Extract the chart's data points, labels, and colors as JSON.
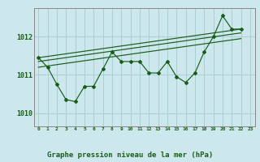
{
  "title": "Graphe pression niveau de la mer (hPa)",
  "bg_color": "#cce8ec",
  "grid_color": "#aacdd4",
  "line_color": "#1a5c1a",
  "xlim": [
    -0.5,
    23.5
  ],
  "ylim": [
    1009.65,
    1012.75
  ],
  "yticks": [
    1010,
    1011,
    1012
  ],
  "xticks": [
    0,
    1,
    2,
    3,
    4,
    5,
    6,
    7,
    8,
    9,
    10,
    11,
    12,
    13,
    14,
    15,
    16,
    17,
    18,
    19,
    20,
    21,
    22,
    23
  ],
  "main_data": [
    [
      0,
      1011.45
    ],
    [
      1,
      1011.2
    ],
    [
      2,
      1010.75
    ],
    [
      3,
      1010.35
    ],
    [
      4,
      1010.3
    ],
    [
      5,
      1010.7
    ],
    [
      6,
      1010.7
    ],
    [
      7,
      1011.15
    ],
    [
      8,
      1011.6
    ],
    [
      9,
      1011.35
    ],
    [
      10,
      1011.35
    ],
    [
      11,
      1011.35
    ],
    [
      12,
      1011.05
    ],
    [
      13,
      1011.05
    ],
    [
      14,
      1011.35
    ],
    [
      15,
      1010.95
    ],
    [
      16,
      1010.8
    ],
    [
      17,
      1011.05
    ],
    [
      18,
      1011.6
    ],
    [
      19,
      1012.0
    ],
    [
      20,
      1012.55
    ],
    [
      21,
      1012.2
    ],
    [
      22,
      1012.2
    ]
  ],
  "trend_lines": [
    [
      [
        0,
        1011.45
      ],
      [
        22,
        1012.2
      ]
    ],
    [
      [
        0,
        1011.35
      ],
      [
        22,
        1012.1
      ]
    ],
    [
      [
        0,
        1011.2
      ],
      [
        22,
        1011.95
      ]
    ]
  ]
}
